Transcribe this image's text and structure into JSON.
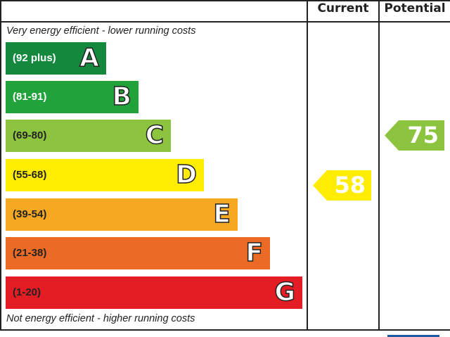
{
  "chart_data": {
    "type": "bar",
    "columns": [
      "Current",
      "Potential"
    ],
    "top_note": "Very energy efficient - lower running costs",
    "bottom_note": "Not energy efficient - higher running costs",
    "bands": [
      {
        "letter": "A",
        "range": "(92 plus)",
        "color": "#14893e",
        "text_color": "#ffffff"
      },
      {
        "letter": "B",
        "range": "(81-91)",
        "color": "#22a23a",
        "text_color": "#ffffff"
      },
      {
        "letter": "C",
        "range": "(69-80)",
        "color": "#8cc43f",
        "text_color": "#222222"
      },
      {
        "letter": "D",
        "range": "(55-68)",
        "color": "#ffec00",
        "text_color": "#222222"
      },
      {
        "letter": "E",
        "range": "(39-54)",
        "color": "#f6a823",
        "text_color": "#222222"
      },
      {
        "letter": "F",
        "range": "(21-38)",
        "color": "#eb6a25",
        "text_color": "#222222"
      },
      {
        "letter": "G",
        "range": "(1-20)",
        "color": "#e31d23",
        "text_color": "#222222"
      }
    ],
    "current": {
      "value": "58",
      "band": "D",
      "color": "#ffec00"
    },
    "potential": {
      "value": "75",
      "band": "C",
      "color": "#8cc43f"
    }
  }
}
